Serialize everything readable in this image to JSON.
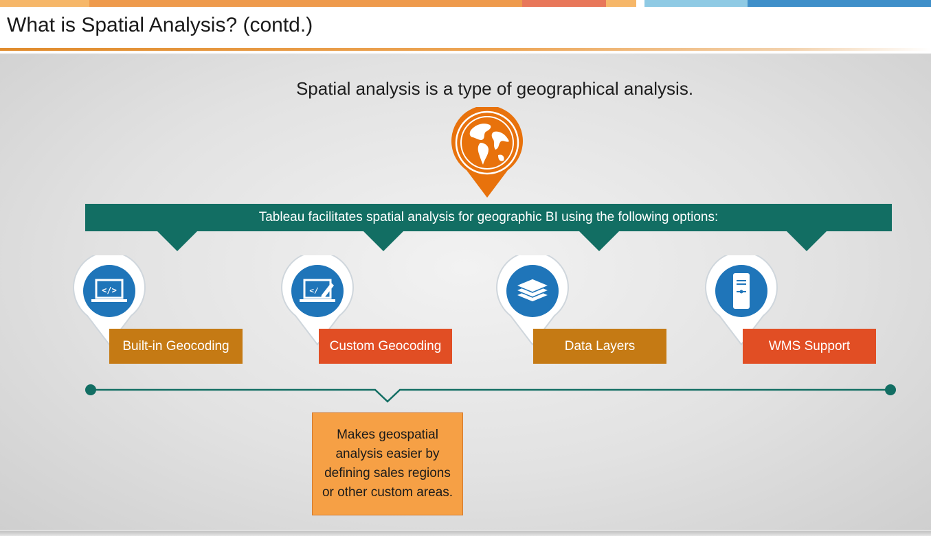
{
  "slide": {
    "title": "What is Spatial Analysis? (contd.)",
    "intro": "Spatial analysis is a type of geographical analysis.",
    "banner": "Tableau facilitates spatial analysis for geographic BI using the following options:"
  },
  "options": [
    {
      "label": "Built-in Geocoding",
      "icon": "laptop-code-icon",
      "color": "#c57a14"
    },
    {
      "label": "Custom Geocoding",
      "icon": "laptop-edit-icon",
      "color": "#e14e24"
    },
    {
      "label": "Data Layers",
      "icon": "layers-icon",
      "color": "#c57a14"
    },
    {
      "label": "WMS Support",
      "icon": "server-icon",
      "color": "#e14e24"
    }
  ],
  "description": "Makes geospatial analysis easier by defining sales regions or other custom areas.",
  "colors": {
    "teal": "#126e63",
    "pin_blue": "#1f75b9",
    "globe_orange": "#e8720c",
    "desc_orange": "#f6a045"
  }
}
